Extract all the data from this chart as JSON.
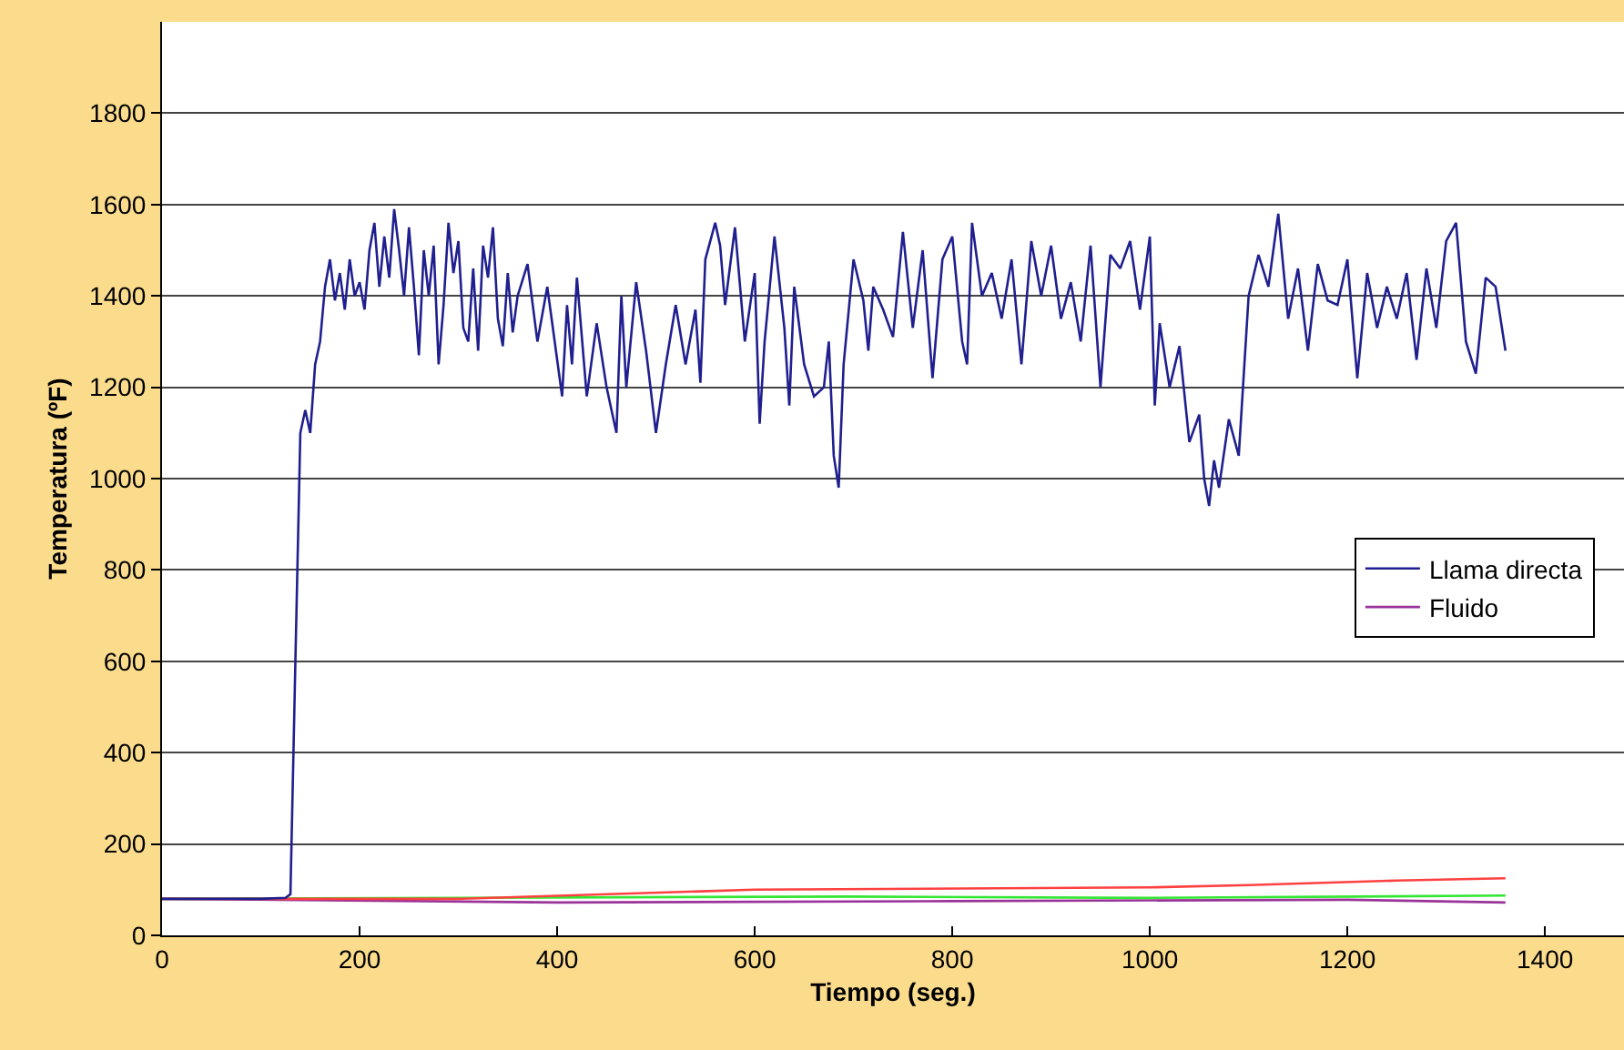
{
  "chart_data": {
    "type": "line",
    "xlabel": "Tiempo (seg.)",
    "ylabel": "Temperatura (ºF)",
    "xlim": [
      0,
      1480
    ],
    "xticks": [
      0,
      200,
      400,
      600,
      800,
      1000,
      1200,
      1400
    ],
    "ylim": [
      0,
      2000
    ],
    "yticks": [
      0,
      200,
      400,
      600,
      800,
      1000,
      1200,
      1400,
      1600,
      1800
    ],
    "grid": "y",
    "legend": "right",
    "marker": "none",
    "line_style": "solid",
    "series": [
      {
        "name": "Llama directa",
        "color": "#1f1f8f",
        "x": [
          0,
          50,
          100,
          125,
          130,
          135,
          140,
          145,
          150,
          155,
          160,
          165,
          170,
          175,
          180,
          185,
          190,
          195,
          200,
          205,
          210,
          215,
          220,
          225,
          230,
          235,
          240,
          245,
          250,
          255,
          260,
          265,
          270,
          275,
          280,
          285,
          290,
          295,
          300,
          305,
          310,
          315,
          320,
          325,
          330,
          335,
          340,
          345,
          350,
          355,
          360,
          370,
          380,
          390,
          400,
          405,
          410,
          415,
          420,
          430,
          440,
          450,
          460,
          465,
          470,
          480,
          490,
          500,
          510,
          520,
          530,
          540,
          545,
          550,
          560,
          565,
          570,
          580,
          590,
          600,
          605,
          610,
          620,
          630,
          635,
          640,
          650,
          660,
          670,
          675,
          680,
          685,
          690,
          700,
          710,
          715,
          720,
          730,
          740,
          750,
          760,
          770,
          780,
          790,
          800,
          810,
          815,
          820,
          830,
          840,
          850,
          860,
          870,
          880,
          890,
          900,
          910,
          920,
          930,
          940,
          950,
          960,
          970,
          980,
          990,
          1000,
          1005,
          1010,
          1020,
          1030,
          1040,
          1050,
          1055,
          1060,
          1065,
          1070,
          1080,
          1090,
          1100,
          1110,
          1120,
          1130,
          1140,
          1150,
          1160,
          1170,
          1180,
          1190,
          1200,
          1210,
          1220,
          1230,
          1240,
          1250,
          1260,
          1270,
          1280,
          1290,
          1300,
          1310,
          1320,
          1330,
          1340,
          1350,
          1360
        ],
        "values": [
          80,
          80,
          80,
          82,
          90,
          600,
          1100,
          1150,
          1100,
          1250,
          1300,
          1420,
          1480,
          1390,
          1450,
          1370,
          1480,
          1400,
          1430,
          1370,
          1500,
          1560,
          1420,
          1530,
          1440,
          1590,
          1500,
          1400,
          1550,
          1420,
          1270,
          1500,
          1400,
          1510,
          1250,
          1380,
          1560,
          1450,
          1520,
          1330,
          1300,
          1460,
          1280,
          1510,
          1440,
          1550,
          1350,
          1290,
          1450,
          1320,
          1400,
          1470,
          1300,
          1420,
          1260,
          1180,
          1380,
          1250,
          1440,
          1180,
          1340,
          1200,
          1100,
          1400,
          1200,
          1430,
          1280,
          1100,
          1250,
          1380,
          1250,
          1370,
          1210,
          1480,
          1560,
          1510,
          1380,
          1550,
          1300,
          1450,
          1120,
          1300,
          1530,
          1330,
          1160,
          1420,
          1250,
          1180,
          1200,
          1300,
          1050,
          980,
          1250,
          1480,
          1390,
          1280,
          1420,
          1370,
          1310,
          1540,
          1330,
          1500,
          1220,
          1480,
          1530,
          1300,
          1250,
          1560,
          1400,
          1450,
          1350,
          1480,
          1250,
          1520,
          1400,
          1510,
          1350,
          1430,
          1300,
          1510,
          1200,
          1490,
          1460,
          1520,
          1370,
          1530,
          1160,
          1340,
          1200,
          1290,
          1080,
          1140,
          1000,
          940,
          1040,
          980,
          1130,
          1050,
          1400,
          1490,
          1420,
          1580,
          1350,
          1460,
          1280,
          1470,
          1390,
          1380,
          1480,
          1220,
          1450,
          1330,
          1420,
          1350,
          1450,
          1260,
          1460,
          1330,
          1520,
          1560,
          1300,
          1230,
          1440,
          1420,
          1280
        ]
      },
      {
        "color": "#ff4040",
        "x": [
          0,
          300,
          600,
          1000,
          1100,
          1250,
          1360
        ],
        "values": [
          80,
          80,
          100,
          105,
          110,
          120,
          125
        ]
      },
      {
        "color": "#33e633",
        "x": [
          0,
          700,
          1000,
          1360
        ],
        "values": [
          80,
          85,
          82,
          87
        ]
      },
      {
        "name": "Fluido",
        "color": "#993399",
        "x": [
          0,
          400,
          800,
          1200,
          1360
        ],
        "values": [
          80,
          72,
          75,
          78,
          72
        ]
      }
    ]
  }
}
